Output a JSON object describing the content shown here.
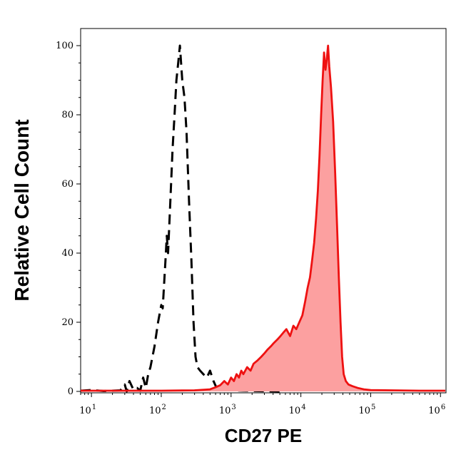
{
  "chart_data": {
    "type": "area",
    "xlabel": "CD27 PE",
    "ylabel": "Relative Cell Count",
    "xscale": "log",
    "xlim": [
      7,
      1200000
    ],
    "ylim": [
      0,
      100
    ],
    "x_tick_labels": [
      {
        "base": "10",
        "exp": "1",
        "value": 10
      },
      {
        "base": "10",
        "exp": "2",
        "value": 100
      },
      {
        "base": "10",
        "exp": "3",
        "value": 1000
      },
      {
        "base": "10",
        "exp": "4",
        "value": 10000
      },
      {
        "base": "10",
        "exp": "5",
        "value": 100000
      },
      {
        "base": "10",
        "exp": "6",
        "value": 1000000
      }
    ],
    "y_ticks": [
      0,
      20,
      40,
      60,
      80,
      100
    ],
    "y_tick_labels": [
      "0",
      "20",
      "40",
      "60",
      "80",
      "100"
    ],
    "series": [
      {
        "style": "dashed",
        "color": "#000000",
        "fill": "none",
        "points": [
          [
            7,
            0.2
          ],
          [
            10,
            0.4
          ],
          [
            15,
            0.1
          ],
          [
            20,
            0.2
          ],
          [
            26,
            0.3
          ],
          [
            30,
            2
          ],
          [
            32,
            0
          ],
          [
            35,
            3
          ],
          [
            40,
            0.5
          ],
          [
            45,
            1
          ],
          [
            50,
            0.2
          ],
          [
            55,
            4
          ],
          [
            60,
            1
          ],
          [
            65,
            5
          ],
          [
            70,
            7
          ],
          [
            80,
            13
          ],
          [
            90,
            20
          ],
          [
            100,
            25
          ],
          [
            105,
            24
          ],
          [
            115,
            38
          ],
          [
            120,
            45
          ],
          [
            125,
            40
          ],
          [
            135,
            55
          ],
          [
            145,
            70
          ],
          [
            155,
            80
          ],
          [
            165,
            90
          ],
          [
            175,
            95
          ],
          [
            185,
            100
          ],
          [
            200,
            90
          ],
          [
            215,
            85
          ],
          [
            230,
            75
          ],
          [
            250,
            55
          ],
          [
            270,
            38
          ],
          [
            290,
            20
          ],
          [
            310,
            10
          ],
          [
            330,
            7
          ],
          [
            360,
            6
          ],
          [
            400,
            5
          ],
          [
            450,
            4
          ],
          [
            500,
            6
          ],
          [
            560,
            3
          ],
          [
            620,
            1
          ],
          [
            700,
            1.5
          ],
          [
            800,
            0.5
          ],
          [
            1000,
            0.3
          ],
          [
            1500,
            0.2
          ],
          [
            2500,
            0.1
          ],
          [
            5000,
            0
          ]
        ]
      },
      {
        "style": "solid",
        "color": "#ee1111",
        "fill": "#fca0a0",
        "points": [
          [
            7,
            0.2
          ],
          [
            100,
            0.2
          ],
          [
            300,
            0.3
          ],
          [
            500,
            0.6
          ],
          [
            600,
            1.2
          ],
          [
            700,
            1.8
          ],
          [
            800,
            3
          ],
          [
            900,
            2
          ],
          [
            1000,
            4
          ],
          [
            1100,
            3
          ],
          [
            1200,
            5
          ],
          [
            1300,
            4
          ],
          [
            1400,
            6
          ],
          [
            1500,
            5
          ],
          [
            1700,
            7
          ],
          [
            1900,
            6
          ],
          [
            2100,
            8
          ],
          [
            2400,
            9
          ],
          [
            2700,
            10
          ],
          [
            3000,
            11
          ],
          [
            3300,
            12
          ],
          [
            3700,
            13
          ],
          [
            4100,
            14
          ],
          [
            4600,
            15
          ],
          [
            5100,
            16
          ],
          [
            5600,
            17
          ],
          [
            6200,
            18
          ],
          [
            7000,
            16
          ],
          [
            7800,
            19
          ],
          [
            8600,
            18
          ],
          [
            9500,
            20
          ],
          [
            10500,
            22
          ],
          [
            11500,
            26
          ],
          [
            12500,
            30
          ],
          [
            13500,
            33
          ],
          [
            14500,
            38
          ],
          [
            15500,
            43
          ],
          [
            16500,
            50
          ],
          [
            17500,
            58
          ],
          [
            18500,
            68
          ],
          [
            19500,
            80
          ],
          [
            20500,
            90
          ],
          [
            21500,
            98
          ],
          [
            22500,
            93
          ],
          [
            23500,
            96
          ],
          [
            24500,
            100
          ],
          [
            25500,
            94
          ],
          [
            27000,
            88
          ],
          [
            29000,
            78
          ],
          [
            31000,
            63
          ],
          [
            33000,
            48
          ],
          [
            35000,
            33
          ],
          [
            37000,
            20
          ],
          [
            39000,
            10
          ],
          [
            41000,
            5
          ],
          [
            44000,
            3
          ],
          [
            48000,
            2
          ],
          [
            55000,
            1.5
          ],
          [
            65000,
            1
          ],
          [
            80000,
            0.6
          ],
          [
            100000,
            0.4
          ],
          [
            200000,
            0.3
          ],
          [
            500000,
            0.2
          ],
          [
            1200000,
            0.2
          ]
        ]
      }
    ]
  }
}
